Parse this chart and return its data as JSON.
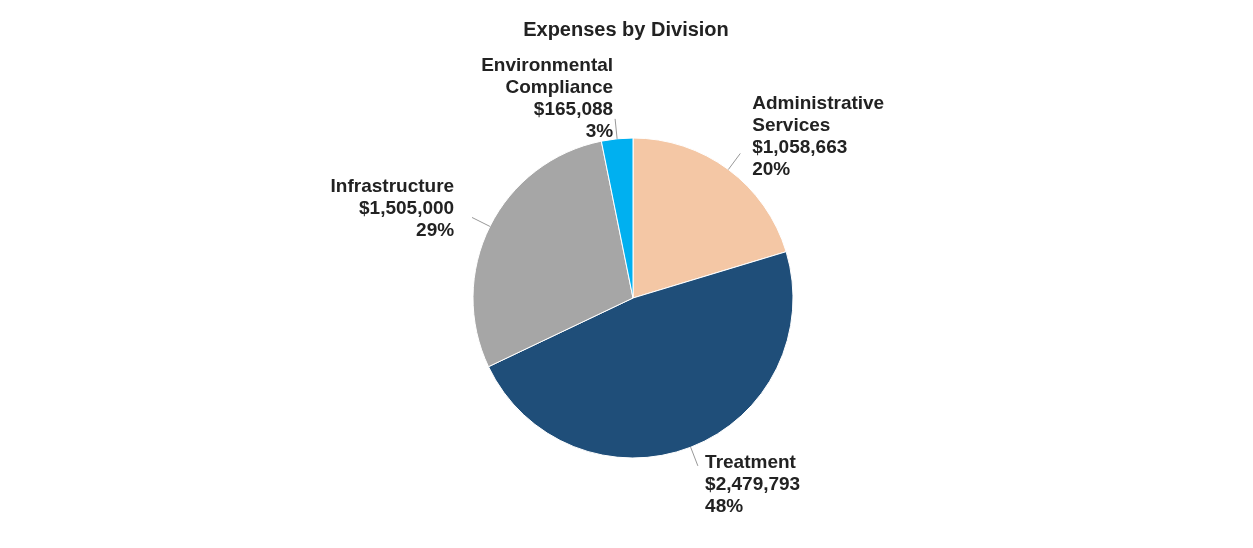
{
  "chart_data": {
    "type": "pie",
    "title": "Expenses by Division",
    "categories": [
      "Administrative Services",
      "Treatment",
      "Infrastructure",
      "Environmental Compliance"
    ],
    "values": [
      1058663,
      2479793,
      1505000,
      165088
    ],
    "colors": [
      "#f4c7a5",
      "#1f4e79",
      "#a6a6a6",
      "#00b0f0"
    ],
    "value_labels": [
      "$1,058,663\n20%",
      "$2,479,793\n48%",
      "$1,505,000\n29%",
      "$165,088\n3%"
    ],
    "legend": false
  }
}
